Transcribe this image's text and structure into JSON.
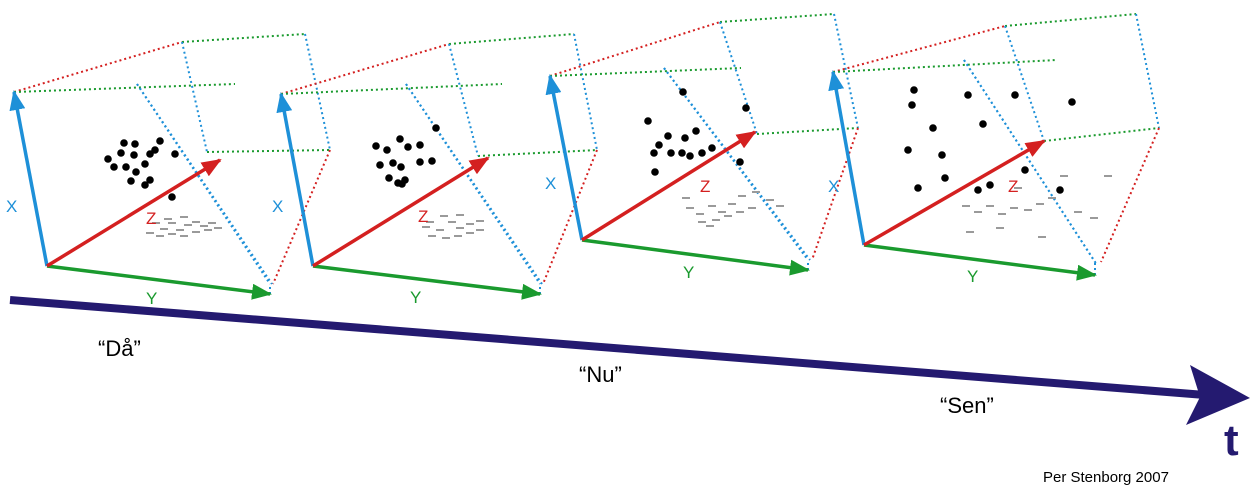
{
  "colors": {
    "x_axis": "#1e90d8",
    "y_axis": "#1a9a2e",
    "z_axis": "#d42020",
    "time_axis": "#241a70",
    "dots": "#000000",
    "shadow": "#9a9a9a"
  },
  "axes": {
    "x": "X",
    "y": "Y",
    "z": "Z"
  },
  "time": {
    "symbol": "t",
    "labels": [
      "“Då”",
      "“Nu”",
      "“Sen”"
    ]
  },
  "credit": "Per Stenborg 2007"
}
